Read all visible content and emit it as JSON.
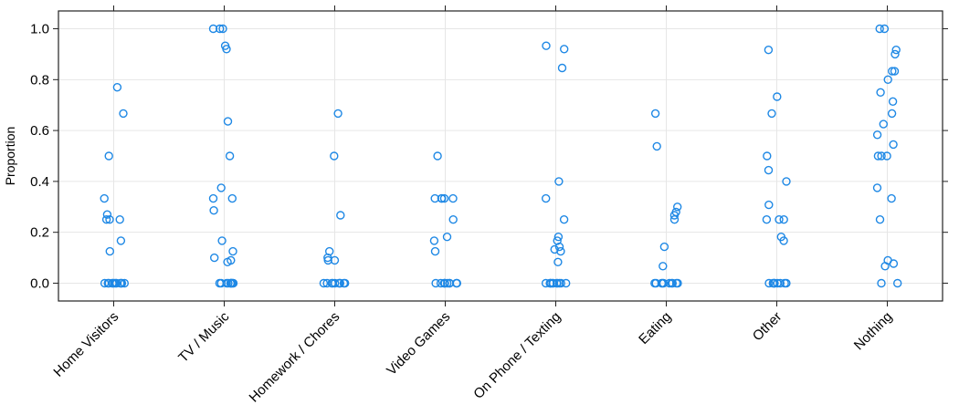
{
  "chart_data": {
    "type": "scatter",
    "title": "",
    "xlabel": "",
    "ylabel": "Proportion",
    "ylim": [
      -0.07,
      1.07
    ],
    "y_ticks": [
      "0.0",
      "0.2",
      "0.4",
      "0.6",
      "0.8",
      "1.0"
    ],
    "grid": true,
    "point_color": "#1e88e5",
    "categories": [
      "Home Visitors",
      "TV / Music",
      "Homework / Chores",
      "Video Games",
      "On Phone / Texting",
      "Eating",
      "Other",
      "Nothing"
    ],
    "points": [
      {
        "category": "Home Visitors",
        "values": [
          0.77,
          0.667,
          0.5,
          0.333,
          0.27,
          0.25,
          0.25,
          0.25,
          0.167,
          0.125,
          0,
          0,
          0,
          0,
          0,
          0,
          0,
          0,
          0,
          0,
          0,
          0
        ]
      },
      {
        "category": "TV / Music",
        "values": [
          1.0,
          1.0,
          1.0,
          0.933,
          0.92,
          0.636,
          0.5,
          0.375,
          0.333,
          0.333,
          0.286,
          0.167,
          0.125,
          0.1,
          0.09,
          0.083,
          0,
          0,
          0,
          0,
          0,
          0,
          0,
          0,
          0,
          0
        ]
      },
      {
        "category": "Homework / Chores",
        "values": [
          0.667,
          0.5,
          0.267,
          0.125,
          0.1,
          0.09,
          0.09,
          0,
          0,
          0,
          0,
          0,
          0,
          0,
          0,
          0,
          0
        ]
      },
      {
        "category": "Video Games",
        "values": [
          0.5,
          0.333,
          0.333,
          0.333,
          0.333,
          0.333,
          0.25,
          0.182,
          0.167,
          0.125,
          0,
          0,
          0,
          0,
          0,
          0,
          0,
          0,
          0,
          0
        ]
      },
      {
        "category": "On Phone / Texting",
        "values": [
          0.933,
          0.92,
          0.846,
          0.4,
          0.333,
          0.25,
          0.182,
          0.167,
          0.143,
          0.133,
          0.125,
          0.083,
          0,
          0,
          0,
          0,
          0,
          0,
          0,
          0,
          0,
          0,
          0
        ]
      },
      {
        "category": "Eating",
        "values": [
          0.667,
          0.538,
          0.3,
          0.28,
          0.267,
          0.25,
          0.143,
          0.067,
          0,
          0,
          0,
          0,
          0,
          0,
          0,
          0,
          0,
          0
        ]
      },
      {
        "category": "Other",
        "values": [
          0.917,
          0.733,
          0.667,
          0.5,
          0.444,
          0.4,
          0.308,
          0.25,
          0.25,
          0.25,
          0.182,
          0.167,
          0,
          0,
          0,
          0,
          0,
          0,
          0,
          0,
          0
        ]
      },
      {
        "category": "Nothing",
        "values": [
          1.0,
          1.0,
          0.917,
          0.9,
          0.833,
          0.833,
          0.8,
          0.75,
          0.714,
          0.667,
          0.625,
          0.583,
          0.545,
          0.5,
          0.5,
          0.5,
          0.375,
          0.333,
          0.25,
          0.09,
          0.077,
          0.067,
          0,
          0
        ]
      }
    ]
  }
}
